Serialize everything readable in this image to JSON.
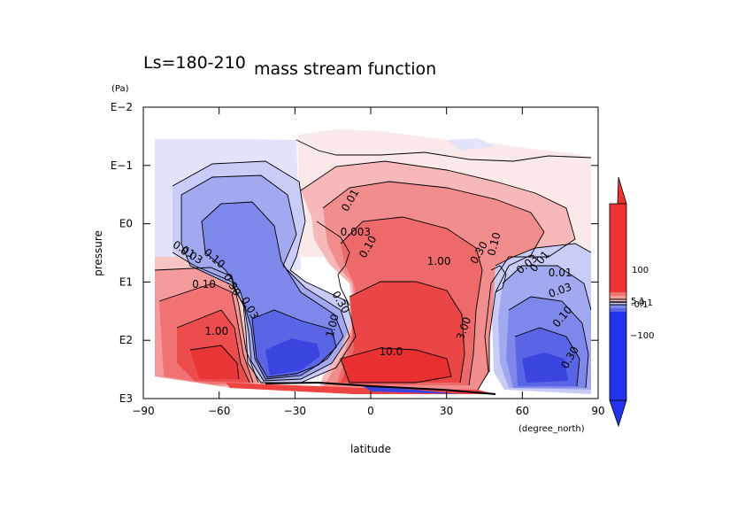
{
  "chart_data": {
    "type": "contour",
    "title": "mass stream function",
    "subtitle": "Ls=180-210",
    "xlabel": "latitude",
    "xunit": "(degree_north)",
    "ylabel": "pressure",
    "yunit": "(Pa)",
    "x_ticks": [
      "−90",
      "−60",
      "−30",
      "0",
      "30",
      "60",
      "90"
    ],
    "y_ticks": [
      "E−2",
      "E−1",
      "E0",
      "E1",
      "E2",
      "E3"
    ],
    "xlim": [
      -90,
      90
    ],
    "ylim_log10": [
      -2,
      3
    ],
    "colorbar": {
      "labels": [
        "100",
        "5.1",
        "0.1",
        "-0.1",
        "−100"
      ],
      "positive_color": "#ee3333",
      "negative_color": "#2233ee"
    },
    "contour_labels": [
      {
        "text": "0.01",
        "lat": -8,
        "logp": -0.4,
        "rot": -60
      },
      {
        "text": "0.003",
        "lat": -6,
        "logp": 0.15,
        "rot": 0
      },
      {
        "text": "0.10",
        "lat": -1,
        "logp": 0.4,
        "rot": -60
      },
      {
        "text": "0.30",
        "lat": -12,
        "logp": 1.35,
        "rot": 60
      },
      {
        "text": "1.00",
        "lat": -15,
        "logp": 1.75,
        "rot": -75
      },
      {
        "text": "0.10",
        "lat": -62,
        "logp": 0.6,
        "rot": 40
      },
      {
        "text": "0.03",
        "lat": -71,
        "logp": 0.55,
        "rot": 30
      },
      {
        "text": "0.01",
        "lat": -74,
        "logp": 0.45,
        "rot": 30
      },
      {
        "text": "0.10",
        "lat": -66,
        "logp": 1.05,
        "rot": 0
      },
      {
        "text": "0.30",
        "lat": -55,
        "logp": 1.05,
        "rot": 60
      },
      {
        "text": "0.03",
        "lat": -48,
        "logp": 1.45,
        "rot": 60
      },
      {
        "text": "1.00",
        "lat": -61,
        "logp": 1.85,
        "rot": 0
      },
      {
        "text": "1.00",
        "lat": 27,
        "logp": 0.65,
        "rot": 0
      },
      {
        "text": "0.30",
        "lat": 43,
        "logp": 0.5,
        "rot": -60
      },
      {
        "text": "0.10",
        "lat": 49,
        "logp": 0.35,
        "rot": -75
      },
      {
        "text": "10.0",
        "lat": 8,
        "logp": 2.2,
        "rot": 0
      },
      {
        "text": "3.00",
        "lat": 37,
        "logp": 1.8,
        "rot": -70
      },
      {
        "text": "0.03",
        "lat": 62,
        "logp": 0.7,
        "rot": -40
      },
      {
        "text": "0.01",
        "lat": 67,
        "logp": 0.65,
        "rot": -50
      },
      {
        "text": "0.01",
        "lat": 75,
        "logp": 0.85,
        "rot": 0
      },
      {
        "text": "0.03",
        "lat": 75,
        "logp": 1.15,
        "rot": -20
      },
      {
        "text": "0.10",
        "lat": 76,
        "logp": 1.6,
        "rot": -50
      },
      {
        "text": "0.30",
        "lat": 79,
        "logp": 2.3,
        "rot": -60
      }
    ]
  }
}
